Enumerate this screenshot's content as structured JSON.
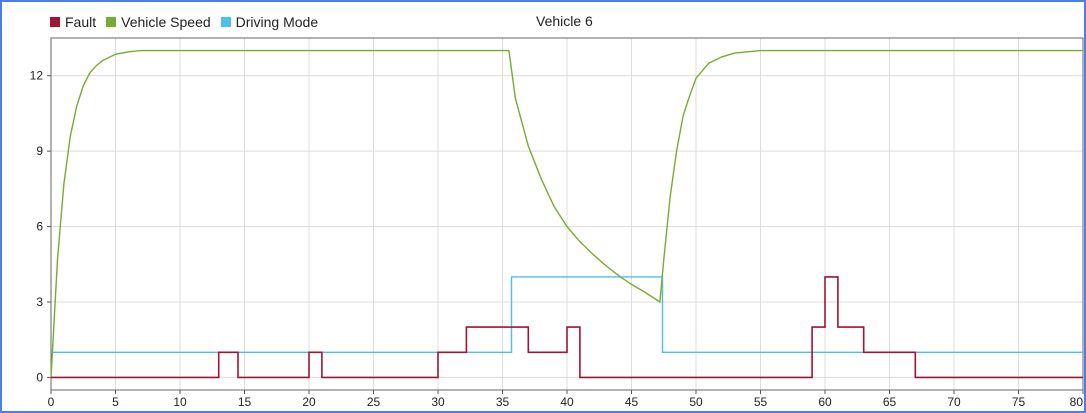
{
  "chart_data": {
    "type": "line",
    "title": "Vehicle 6",
    "xlabel": "",
    "ylabel": "",
    "xlim": [
      0,
      80
    ],
    "ylim": [
      -0.5,
      13.5
    ],
    "x_ticks": [
      0,
      5,
      10,
      15,
      20,
      25,
      30,
      35,
      40,
      45,
      50,
      55,
      60,
      65,
      70,
      75,
      80
    ],
    "y_ticks": [
      0,
      3,
      6,
      9,
      12
    ],
    "grid": true,
    "legend": "top-left",
    "series": [
      {
        "name": "Fault",
        "color": "#a2142f",
        "step": true,
        "x": [
          0,
          13,
          13,
          14.5,
          14.5,
          20,
          20,
          21,
          21,
          30,
          30,
          32.2,
          32.2,
          37,
          37,
          40,
          40,
          41,
          41,
          59,
          59,
          60,
          60,
          61,
          61,
          63,
          63,
          67,
          67,
          80
        ],
        "y": [
          0,
          0,
          1,
          1,
          0,
          0,
          1,
          1,
          0,
          0,
          1,
          1,
          2,
          2,
          1,
          1,
          2,
          2,
          0,
          0,
          2,
          2,
          4,
          4,
          2,
          2,
          1,
          1,
          0,
          0
        ]
      },
      {
        "name": "Vehicle Speed",
        "color": "#77ac30",
        "step": false,
        "x": [
          0,
          0.5,
          1,
          1.5,
          2,
          2.5,
          3,
          3.5,
          4,
          5,
          6,
          7,
          8,
          10,
          15,
          20,
          25,
          30,
          35.5,
          36,
          37,
          38,
          39,
          40,
          41,
          42,
          43,
          44,
          45,
          46,
          47.2,
          47.5,
          48,
          48.5,
          49,
          49.5,
          50,
          51,
          52,
          53,
          54,
          55,
          60,
          65,
          70,
          75,
          80
        ],
        "y": [
          0,
          4.7,
          7.7,
          9.6,
          10.8,
          11.6,
          12.1,
          12.4,
          12.6,
          12.85,
          12.95,
          13,
          13,
          13,
          13,
          13,
          13,
          13,
          13,
          11.1,
          9.2,
          7.9,
          6.8,
          6.0,
          5.4,
          4.9,
          4.45,
          4.05,
          3.7,
          3.4,
          3.0,
          4.7,
          7.2,
          9.0,
          10.4,
          11.2,
          11.9,
          12.5,
          12.75,
          12.9,
          12.95,
          13,
          13,
          13,
          13,
          13,
          13
        ]
      },
      {
        "name": "Driving Mode",
        "color": "#4dbeee",
        "step": true,
        "x": [
          0,
          35.7,
          35.7,
          47.4,
          47.4,
          80
        ],
        "y": [
          1,
          1,
          4,
          4,
          1,
          1
        ]
      }
    ]
  }
}
